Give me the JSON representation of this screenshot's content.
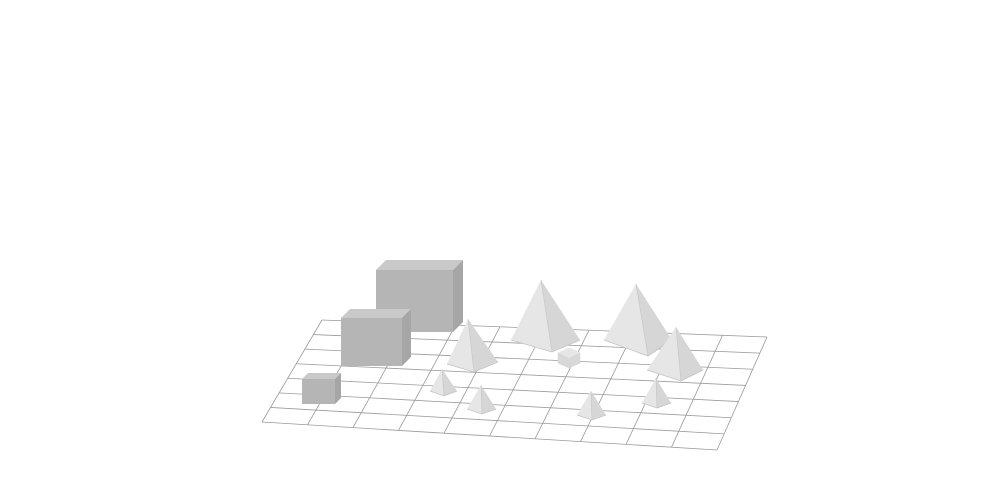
{
  "scene": {
    "background": "#ffffff",
    "grid_color": "#9a9a9a",
    "grid": {
      "columns": 10,
      "rows": 7
    },
    "colors": {
      "cube_front": "#b5b5b5",
      "cube_top": "#c9c9c9",
      "cube_side": "#a6a6a6",
      "pyr_light": "#e6e6e6",
      "pyr_mid": "#d6d6d6",
      "pyr_dark": "#c4c4c4",
      "blob": "#d8d8d8"
    },
    "objects": [
      {
        "kind": "cube",
        "name": "cube-large"
      },
      {
        "kind": "cube",
        "name": "cube-medium"
      },
      {
        "kind": "cube",
        "name": "cube-small"
      },
      {
        "kind": "pyramid",
        "name": "pyramid-large-center"
      },
      {
        "kind": "pyramid",
        "name": "pyramid-large-right"
      },
      {
        "kind": "pyramid",
        "name": "pyramid-medium-left"
      },
      {
        "kind": "pyramid",
        "name": "pyramid-medium-right"
      },
      {
        "kind": "pyramid",
        "name": "pyramid-small-1"
      },
      {
        "kind": "pyramid",
        "name": "pyramid-small-2"
      },
      {
        "kind": "pyramid",
        "name": "pyramid-small-3"
      },
      {
        "kind": "pyramid",
        "name": "pyramid-small-4"
      },
      {
        "kind": "polyhedron",
        "name": "polyhedron-small"
      }
    ]
  }
}
